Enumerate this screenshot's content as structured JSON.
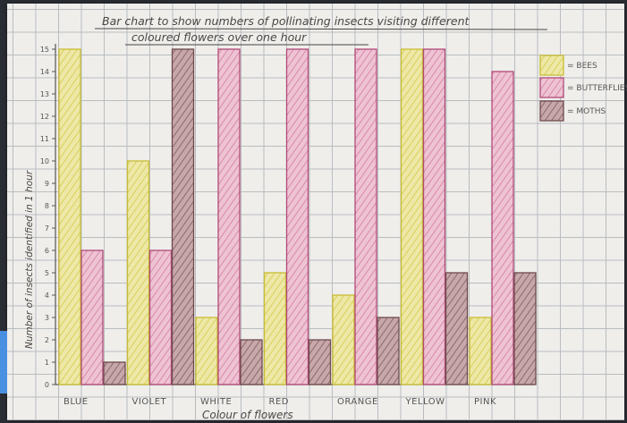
{
  "chart_data": {
    "type": "bar",
    "title": "Bar chart to show numbers of pollinating insects visiting different coloured flowers over one hour",
    "title_lines": [
      "Bar chart to show numbers of pollinating insects visiting different",
      "coloured flowers over one hour"
    ],
    "xlabel": "Colour of flowers",
    "ylabel": "Number of insects identified in 1 hour",
    "ylim": [
      0,
      15
    ],
    "yticks": [
      0,
      1,
      2,
      3,
      4,
      5,
      6,
      7,
      8,
      9,
      10,
      11,
      12,
      13,
      14,
      15
    ],
    "grid": true,
    "legend_placement": "top-right",
    "categories": [
      "BLUE",
      "VIOLET",
      "WHITE",
      "RED",
      "ORANGE",
      "YELLOW",
      "PINK"
    ],
    "series": [
      {
        "name": "= BEES",
        "color": "#e8e08a",
        "stroke": "#c9bd35",
        "values": [
          15,
          10,
          3,
          5,
          4,
          15,
          3
        ]
      },
      {
        "name": "= BUTTERFLIES",
        "color": "#e5a9c1",
        "stroke": "#b04a77",
        "values": [
          6,
          6,
          15,
          15,
          15,
          15,
          14
        ]
      },
      {
        "name": "= MOTHS",
        "color": "#b89296",
        "stroke": "#6e4a4c",
        "values": [
          1,
          15,
          2,
          2,
          3,
          5,
          5
        ]
      }
    ]
  }
}
